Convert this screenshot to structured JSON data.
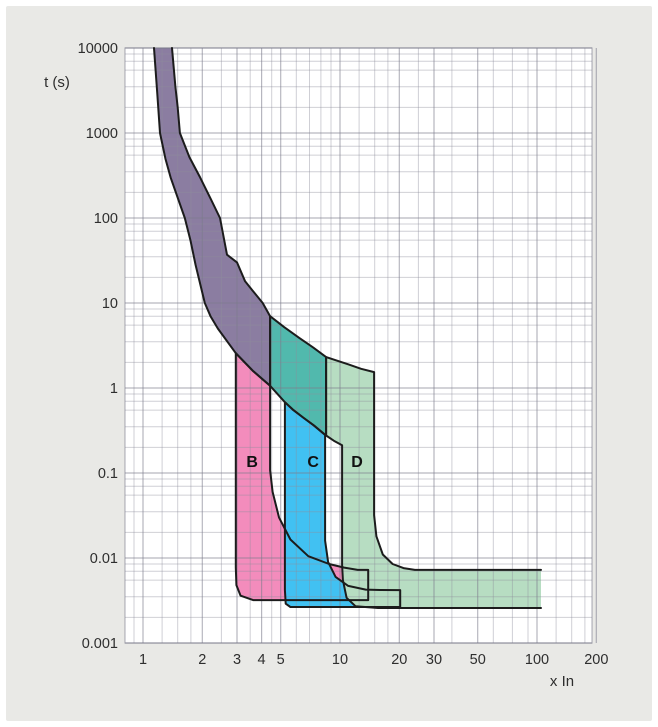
{
  "window": {
    "page_background": "#ffffff",
    "panel_background": "#e9e9e6"
  },
  "chart_data": {
    "type": "area",
    "title": "",
    "xlabel": "x In",
    "ylabel": "t (s)",
    "x_scale": "log",
    "y_scale": "log",
    "xlim": [
      0.81,
      200
    ],
    "ylim": [
      0.001,
      10000
    ],
    "grid": true,
    "legend": "none",
    "x_ticks": [
      {
        "v": 1,
        "label": "1"
      },
      {
        "v": 2,
        "label": "2"
      },
      {
        "v": 3,
        "label": "3"
      },
      {
        "v": 4,
        "label": "4"
      },
      {
        "v": 5,
        "label": "5"
      },
      {
        "v": 10,
        "label": "10"
      },
      {
        "v": 20,
        "label": "20"
      },
      {
        "v": 30,
        "label": "30"
      },
      {
        "v": 50,
        "label": "50"
      },
      {
        "v": 100,
        "label": "100"
      },
      {
        "v": 200,
        "label": "200"
      }
    ],
    "y_ticks": [
      {
        "t": 10000,
        "label": "10000"
      },
      {
        "t": 1000,
        "label": "1000"
      },
      {
        "t": 100,
        "label": "100"
      },
      {
        "t": 10,
        "label": "10"
      },
      {
        "t": 1,
        "label": "1"
      },
      {
        "t": 0.1,
        "label": "0.1"
      },
      {
        "t": 0.01,
        "label": "0.01"
      },
      {
        "t": 0.001,
        "label": "0.001"
      }
    ],
    "x_minor_ticks": [
      0.9,
      1.25,
      1.5,
      1.75,
      2.5,
      3.5,
      4.5,
      6,
      7,
      8,
      9,
      12.5,
      15,
      17.5,
      25,
      37,
      60,
      75,
      90,
      125,
      150,
      175
    ],
    "y_minor_factors": [
      2,
      3.5,
      5.5,
      7,
      8.5
    ],
    "colors": {
      "plot_background": "#ffffff",
      "grid_major": "#7c7c8c",
      "grid_minor": "#8e8e9c",
      "outline": "#1c1c1c",
      "tick_label": "#2e2e2e"
    },
    "bands_summary": {
      "thermal_band_start_xin": [
        1.13,
        1.45
      ],
      "B_magnetic_trip_range_xin": [
        3,
        5
      ],
      "C_magnetic_trip_range_xin": [
        5,
        10
      ],
      "D_magnetic_trip_range_xin": [
        10,
        20
      ],
      "instantaneous_clearing_time_s": [
        0.0026,
        0.0072
      ],
      "max_current_shown_xin": 105
    },
    "regions": [
      {
        "name": "band-B-pink",
        "color": "#f38cbc",
        "points": [
          [
            2.96,
            2.57
          ],
          [
            3.6,
            1.6
          ],
          [
            4.42,
            1.06
          ],
          [
            4.42,
            0.108
          ],
          [
            4.55,
            0.06
          ],
          [
            4.9,
            0.03
          ],
          [
            5.6,
            0.0165
          ],
          [
            6.9,
            0.0105
          ],
          [
            8.8,
            0.0085
          ],
          [
            10.5,
            0.0077
          ],
          [
            12.3,
            0.00724
          ],
          [
            13.9,
            0.00724
          ],
          [
            13.9,
            0.0032
          ],
          [
            3.62,
            0.0032
          ],
          [
            3.13,
            0.0036
          ],
          [
            2.98,
            0.0048
          ],
          [
            2.96,
            0.0077
          ]
        ]
      },
      {
        "name": "band-C-blue",
        "color": "#41c1f2",
        "points": [
          [
            5.25,
            0.68
          ],
          [
            5.8,
            0.55
          ],
          [
            6.5,
            0.45
          ],
          [
            7.4,
            0.36
          ],
          [
            8.4,
            0.28
          ],
          [
            8.4,
            0.016
          ],
          [
            8.7,
            0.009
          ],
          [
            9.5,
            0.006
          ],
          [
            11,
            0.0047
          ],
          [
            13.5,
            0.00425
          ],
          [
            16,
            0.0042
          ],
          [
            20.2,
            0.00419
          ],
          [
            20.2,
            0.00265
          ],
          [
            5.6,
            0.00265
          ],
          [
            5.3,
            0.0029
          ],
          [
            5.25,
            0.0042
          ],
          [
            5.25,
            0.0055
          ]
        ]
      },
      {
        "name": "band-D-green",
        "color": "#b7ddc2",
        "skip": 10,
        "points": [
          [
            8.5,
            2.31
          ],
          [
            11,
            1.9
          ],
          [
            12.8,
            1.68
          ],
          [
            14.9,
            1.54
          ],
          [
            14.9,
            0.032
          ],
          [
            15.3,
            0.018
          ],
          [
            16.5,
            0.011
          ],
          [
            18.5,
            0.0085
          ],
          [
            21,
            0.0076
          ],
          [
            24,
            0.00724
          ],
          [
            104.8,
            0.00724
          ],
          [
            104.8,
            0.00258
          ],
          [
            15.6,
            0.00258
          ],
          [
            12,
            0.0027
          ],
          [
            10.8,
            0.0034
          ],
          [
            10.35,
            0.0055
          ],
          [
            10.25,
            0.00828
          ],
          [
            10.25,
            0.212
          ],
          [
            9.3,
            0.24
          ],
          [
            8.5,
            0.276
          ]
        ]
      },
      {
        "name": "thermal-band-purple",
        "color": "#8b7da1",
        "skip": 27,
        "points": [
          [
            1.137,
            10000
          ],
          [
            1.18,
            3000
          ],
          [
            1.22,
            1000
          ],
          [
            1.3,
            500
          ],
          [
            1.38,
            300
          ],
          [
            1.63,
            100
          ],
          [
            1.74,
            55
          ],
          [
            1.85,
            28
          ],
          [
            2.06,
            10
          ],
          [
            2.2,
            7
          ],
          [
            2.4,
            5
          ],
          [
            2.96,
            2.57
          ],
          [
            3.6,
            1.6
          ],
          [
            4.42,
            1.06
          ],
          [
            4.42,
            7.0
          ],
          [
            4.05,
            10
          ],
          [
            3.6,
            14
          ],
          [
            3.3,
            18
          ],
          [
            3.0,
            30
          ],
          [
            2.67,
            37
          ],
          [
            2.46,
            100
          ],
          [
            2.2,
            170
          ],
          [
            1.95,
            300
          ],
          [
            1.72,
            520
          ],
          [
            1.54,
            1000
          ],
          [
            1.5,
            2000
          ],
          [
            1.46,
            3500
          ],
          [
            1.404,
            10000
          ]
        ]
      },
      {
        "name": "thermal-band-teal",
        "color": "#51b9ad",
        "points": [
          [
            4.42,
            7.0
          ],
          [
            5.2,
            5.2
          ],
          [
            6.2,
            3.9
          ],
          [
            7.3,
            3.0
          ],
          [
            8.5,
            2.31
          ],
          [
            8.5,
            0.276
          ],
          [
            7.4,
            0.36
          ],
          [
            6.5,
            0.45
          ],
          [
            5.8,
            0.55
          ],
          [
            5.25,
            0.68
          ],
          [
            4.42,
            1.06
          ]
        ]
      }
    ],
    "curve_labels": [
      {
        "text": "B",
        "x": 3.58,
        "t": 0.135
      },
      {
        "text": "C",
        "x": 7.3,
        "t": 0.135
      },
      {
        "text": "D",
        "x": 12.2,
        "t": 0.135
      }
    ]
  }
}
